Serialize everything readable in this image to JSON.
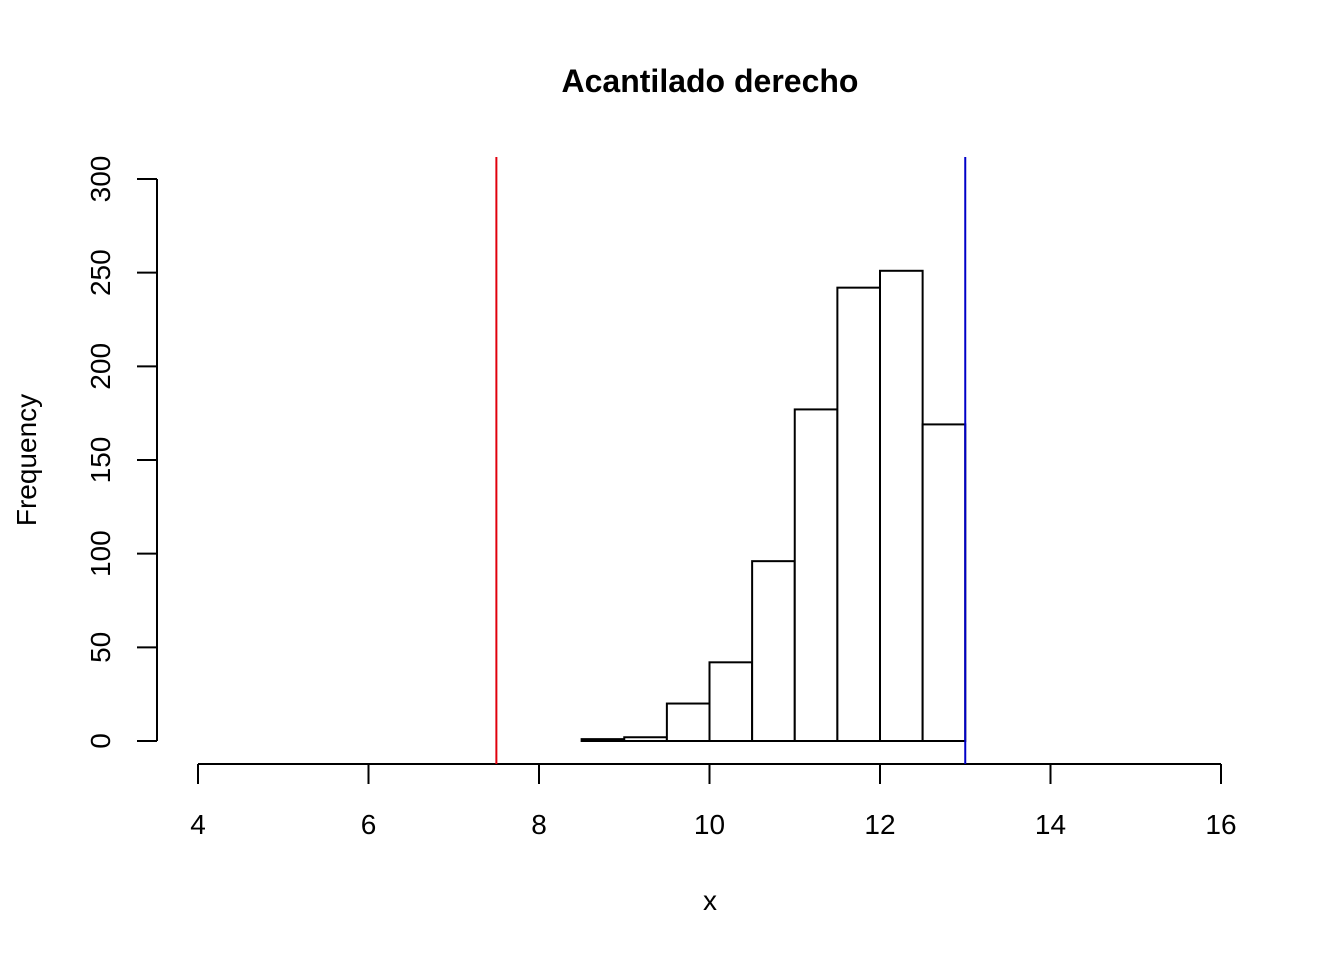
{
  "chart_data": {
    "type": "bar",
    "title": "Acantilado derecho",
    "xlabel": "x",
    "ylabel": "Frequency",
    "xlim": [
      4,
      16
    ],
    "ylim": [
      0,
      300
    ],
    "x_ticks": [
      "4",
      "6",
      "8",
      "10",
      "12",
      "14",
      "16"
    ],
    "y_ticks": [
      "0",
      "50",
      "100",
      "150",
      "200",
      "250",
      "300"
    ],
    "bins": [
      {
        "from": 8.5,
        "to": 9.0,
        "value": 1
      },
      {
        "from": 9.0,
        "to": 9.5,
        "value": 2
      },
      {
        "from": 9.5,
        "to": 10.0,
        "value": 20
      },
      {
        "from": 10.0,
        "to": 10.5,
        "value": 42
      },
      {
        "from": 10.5,
        "to": 11.0,
        "value": 96
      },
      {
        "from": 11.0,
        "to": 11.5,
        "value": 177
      },
      {
        "from": 11.5,
        "to": 12.0,
        "value": 242
      },
      {
        "from": 12.0,
        "to": 12.5,
        "value": 251
      },
      {
        "from": 12.5,
        "to": 13.0,
        "value": 169
      }
    ],
    "reference_lines": [
      {
        "x": 7.5,
        "color": "#e0000d"
      },
      {
        "x": 13.0,
        "color": "#0000c8"
      }
    ],
    "bar_fill": "#ffffff",
    "bar_stroke": "#000000",
    "grid": false,
    "legend": "none"
  }
}
